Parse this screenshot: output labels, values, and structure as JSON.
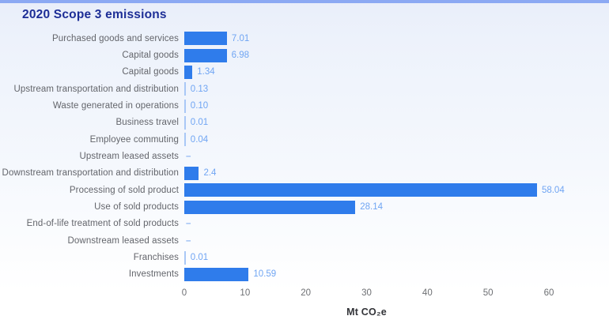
{
  "title": "2020 Scope 3 emissions",
  "chart_data": {
    "type": "bar",
    "orientation": "horizontal",
    "title": "2020 Scope 3 emissions",
    "categories": [
      "Purchased goods and services",
      "Capital goods",
      "Capital goods",
      "Upstream transportation and distribution",
      "Waste generated in operations",
      "Business travel",
      "Employee commuting",
      "Upstream leased assets",
      "Downstream transportation and distribution",
      "Processing of sold product",
      "Use of sold products",
      "End-of-life treatment of sold products",
      "Downstream leased assets",
      "Franchises",
      "Investments"
    ],
    "values": [
      7.01,
      6.98,
      1.34,
      0.13,
      0.1,
      0.01,
      0.04,
      null,
      2.4,
      58.04,
      28.14,
      null,
      null,
      0.01,
      10.59
    ],
    "value_labels": [
      "7.01",
      "6.98",
      "1.34",
      "0.13",
      "0.10",
      "0.01",
      "0.04",
      "–",
      "2.4",
      "58.04",
      "28.14",
      "–",
      "–",
      "0.01",
      "10.59"
    ],
    "null_marker": "–",
    "xlabel": "Mt CO₂e",
    "xticks": [
      0,
      10,
      20,
      30,
      40,
      50,
      60
    ],
    "xlim": [
      0,
      60
    ],
    "grid": false,
    "legend": "none",
    "colors": {
      "bar": "#2f7ceb",
      "thin_bar": "#a9c8f6",
      "value_label": "#70a5f3",
      "dash": "#8fb6f3",
      "category_label": "#63656b",
      "tick_label": "#6d6f73",
      "axis_label": "#323338",
      "title": "#1d2e96",
      "top_strip": "#8ca9f3"
    }
  }
}
